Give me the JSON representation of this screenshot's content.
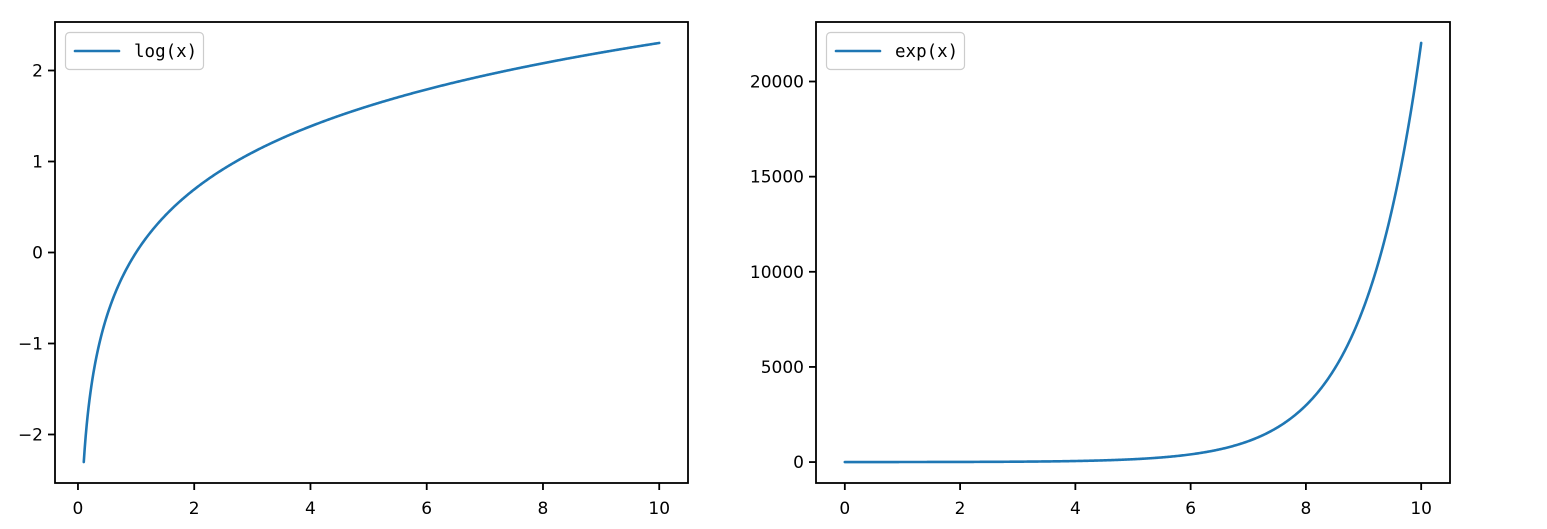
{
  "figure": {
    "background": "#ffffff",
    "line_color": "#1f77b4",
    "axis_color": "#000000",
    "legend_border_color": "#cccccc",
    "legend_background": "#ffffff"
  },
  "chart_data": [
    {
      "type": "line",
      "name": "log-chart",
      "title": "",
      "xlabel": "",
      "ylabel": "",
      "legend_label": "log(x)",
      "legend_position": "upper left",
      "grid": false,
      "fn": "log",
      "x_domain": [
        0.1,
        10
      ],
      "xlim": [
        -0.395,
        10.495
      ],
      "ylim": [
        -2.533,
        2.533
      ],
      "x_ticks": [
        0,
        2,
        4,
        6,
        8,
        10
      ],
      "y_ticks": [
        -2,
        -1,
        0,
        1,
        2
      ],
      "samples": {
        "x": [
          0.1,
          0.5,
          1,
          2,
          3,
          4,
          5,
          6,
          7,
          8,
          9,
          10
        ],
        "y": [
          -2.303,
          -0.693,
          0,
          0.693,
          1.099,
          1.386,
          1.609,
          1.792,
          1.946,
          2.079,
          2.197,
          2.303
        ]
      }
    },
    {
      "type": "line",
      "name": "exp-chart",
      "title": "",
      "xlabel": "",
      "ylabel": "",
      "legend_label": "exp(x)",
      "legend_position": "upper left",
      "grid": false,
      "fn": "exp",
      "x_domain": [
        0,
        10
      ],
      "xlim": [
        -0.5,
        10.5
      ],
      "ylim": [
        -1100.3,
        23127.7
      ],
      "x_ticks": [
        0,
        2,
        4,
        6,
        8,
        10
      ],
      "y_ticks": [
        0,
        5000,
        10000,
        15000,
        20000
      ],
      "samples": {
        "x": [
          0,
          1,
          2,
          3,
          4,
          5,
          6,
          7,
          8,
          9,
          10
        ],
        "y": [
          1,
          2.72,
          7.39,
          20.09,
          54.6,
          148.41,
          403.43,
          1096.63,
          2980.96,
          8103.08,
          22026.47
        ]
      }
    }
  ]
}
